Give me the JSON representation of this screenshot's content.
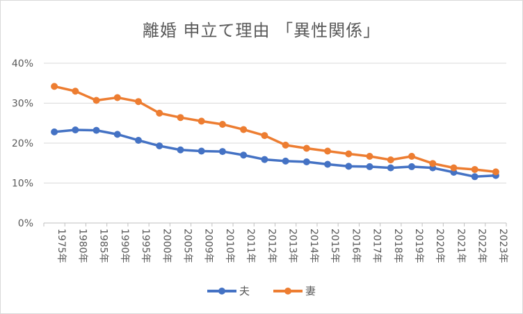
{
  "chart_data": {
    "type": "line",
    "title": "離婚 申立て理由 「異性関係」",
    "categories": [
      "1975年",
      "1980年",
      "1985年",
      "1990年",
      "1995年",
      "2000年",
      "2005年",
      "2009年",
      "2010年",
      "2011年",
      "2012年",
      "2013年",
      "2014年",
      "2015年",
      "2016年",
      "2017年",
      "2018年",
      "2019年",
      "2020年",
      "2021年",
      "2022年",
      "2023年"
    ],
    "ylim": [
      0,
      40
    ],
    "yticks": [
      "0%",
      "10%",
      "20%",
      "30%",
      "40%"
    ],
    "grid": true,
    "legend_position": "bottom",
    "series": [
      {
        "name": "夫",
        "color": "#4472c4",
        "values": [
          22.8,
          23.3,
          23.2,
          22.2,
          20.7,
          19.3,
          18.3,
          18.0,
          17.9,
          17.0,
          15.9,
          15.5,
          15.3,
          14.7,
          14.2,
          14.1,
          13.8,
          14.1,
          13.8,
          12.7,
          11.6,
          11.9
        ]
      },
      {
        "name": "妻",
        "color": "#ed7d31",
        "values": [
          34.2,
          33.0,
          30.7,
          31.4,
          30.4,
          27.5,
          26.4,
          25.5,
          24.7,
          23.4,
          21.9,
          19.5,
          18.7,
          18.0,
          17.3,
          16.7,
          15.8,
          16.7,
          14.9,
          13.8,
          13.4,
          12.8
        ]
      }
    ]
  }
}
